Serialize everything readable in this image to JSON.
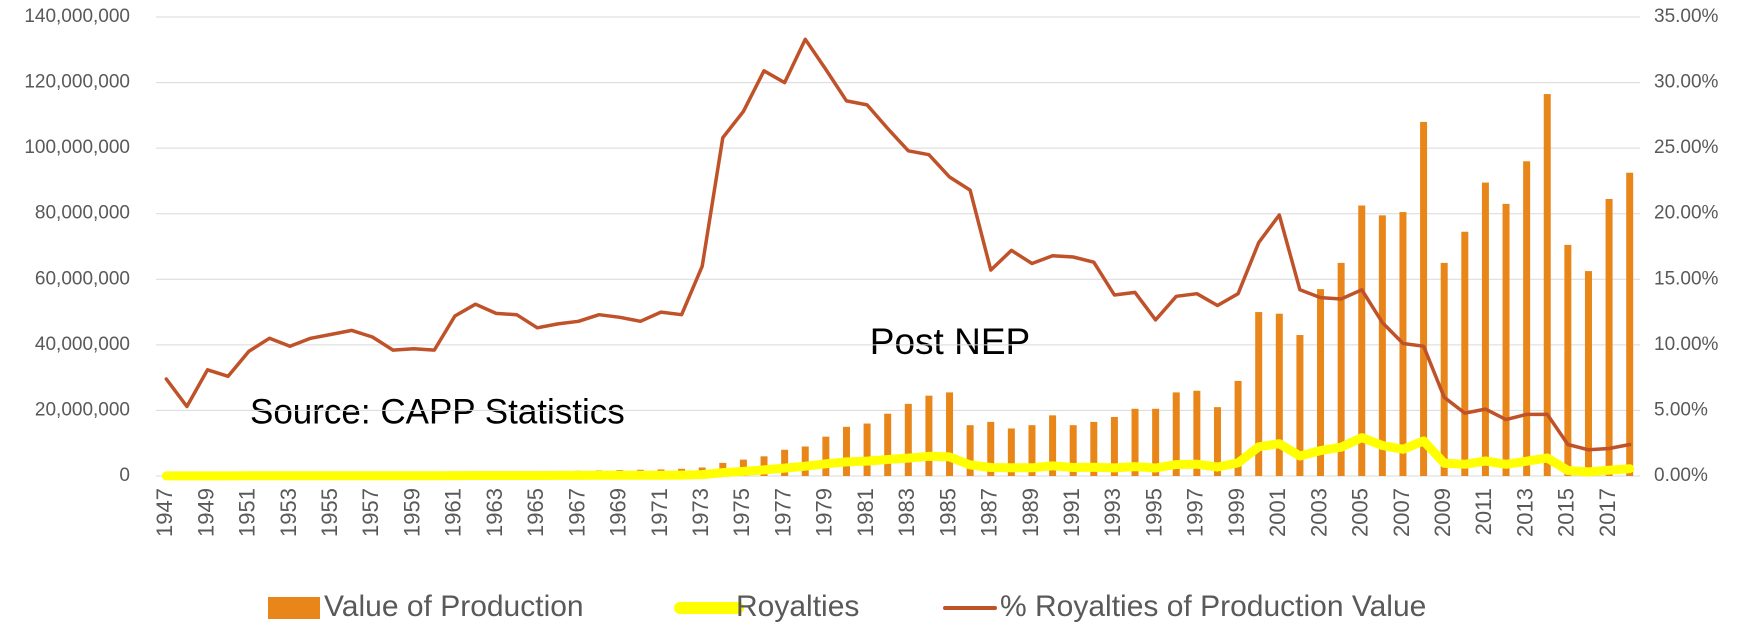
{
  "chart_data": {
    "type": "bar",
    "annotations": [
      "Post NEP",
      "Source: CAPP Statistics"
    ],
    "categories": [
      "1947",
      null,
      "1949",
      null,
      "1951",
      null,
      "1953",
      null,
      "1955",
      null,
      "1957",
      null,
      "1959",
      null,
      "1961",
      null,
      "1963",
      null,
      "1965",
      null,
      "1967",
      null,
      "1969",
      null,
      "1971",
      null,
      "1973",
      null,
      "1975",
      null,
      "1977",
      null,
      "1979",
      null,
      "1981",
      null,
      "1983",
      null,
      "1985",
      null,
      "1987",
      null,
      "1989",
      null,
      "1991",
      null,
      "1993",
      null,
      "1995",
      null,
      "1997",
      null,
      "1999",
      null,
      "2001",
      null,
      "2003",
      null,
      "2005",
      null,
      "2007",
      null,
      "2009",
      null,
      "2011",
      null,
      "2013",
      null,
      "2015",
      null,
      "2017",
      null
    ],
    "series": [
      {
        "name": "Value of Production",
        "type": "bar",
        "color": "#e8861a",
        "values": [
          300000,
          300000,
          400000,
          400000,
          500000,
          500000,
          600000,
          600000,
          700000,
          700000,
          800000,
          800000,
          900000,
          900000,
          1000000,
          1100000,
          1200000,
          1300000,
          1400000,
          1500000,
          1600000,
          1700000,
          1800000,
          1900000,
          2000000,
          2200000,
          2600000,
          4000000,
          5000000,
          6000000,
          8000000,
          9000000,
          12000000,
          15000000,
          16000000,
          19000000,
          22000000,
          24500000,
          25500000,
          15500000,
          16500000,
          14500000,
          15500000,
          18500000,
          15500000,
          16500000,
          18000000,
          20500000,
          20500000,
          25500000,
          26000000,
          21000000,
          29000000,
          50000000,
          49500000,
          43000000,
          57000000,
          65000000,
          82500000,
          79500000,
          80500000,
          108000000,
          65000000,
          74500000,
          89500000,
          83000000,
          96000000,
          116500000,
          70500000,
          62500000,
          84500000,
          92500000
        ]
      },
      {
        "name": "Royalties",
        "type": "line",
        "color": "#ffff00",
        "values": [
          20000,
          16000,
          32000,
          30000,
          48000,
          52000,
          60000,
          63000,
          76000,
          78000,
          85000,
          77000,
          87000,
          86000,
          122000,
          144000,
          149000,
          160000,
          158000,
          174000,
          189000,
          209000,
          218000,
          224000,
          250000,
          271000,
          416000,
          1032000,
          1390000,
          1854000,
          2400000,
          3000000,
          3720000,
          4290000,
          4530000,
          5035000,
          5456000,
          6000000,
          5814000,
          3379000,
          2590000,
          2494000,
          2511000,
          3108000,
          2589000,
          2690000,
          2484000,
          2870000,
          2440000,
          3494000,
          3614000,
          2730000,
          4031000,
          8900000,
          9850000,
          6106000,
          7752000,
          8775000,
          11715000,
          9302000,
          8131000,
          10692000,
          3900000,
          3576000,
          4565000,
          3569000,
          4512000,
          5476000,
          1692000,
          1250000,
          1775000,
          2220000
        ]
      },
      {
        "name": "% Royalties of Production Value",
        "type": "line",
        "axis": "y2",
        "color": "#c0522a",
        "values": [
          7.4,
          5.3,
          8.1,
          7.6,
          9.5,
          10.5,
          9.9,
          10.5,
          10.8,
          11.1,
          10.6,
          9.6,
          9.7,
          9.6,
          12.2,
          13.1,
          12.4,
          12.3,
          11.3,
          11.6,
          11.8,
          12.3,
          12.1,
          11.8,
          12.5,
          12.3,
          16.0,
          25.8,
          27.8,
          30.9,
          30.0,
          33.3,
          31.0,
          28.6,
          28.3,
          26.5,
          24.8,
          24.5,
          22.8,
          21.8,
          15.7,
          17.2,
          16.2,
          16.8,
          16.7,
          16.3,
          13.8,
          14.0,
          11.9,
          13.7,
          13.9,
          13.0,
          13.9,
          17.8,
          19.9,
          14.2,
          13.6,
          13.5,
          14.2,
          11.7,
          10.1,
          9.9,
          6.0,
          4.8,
          5.1,
          4.3,
          4.7,
          4.7,
          2.4,
          2.0,
          2.1,
          2.4
        ]
      }
    ],
    "ylim": [
      0,
      140000000
    ],
    "yticks": [
      {
        "value": 0,
        "label": "0"
      },
      {
        "value": 20000000,
        "label": "20,000,000"
      },
      {
        "value": 40000000,
        "label": "40,000,000"
      },
      {
        "value": 60000000,
        "label": "60,000,000"
      },
      {
        "value": 80000000,
        "label": "80,000,000"
      },
      {
        "value": 100000000,
        "label": "100,000,000"
      },
      {
        "value": 120000000,
        "label": "120,000,000"
      },
      {
        "value": 140000000,
        "label": "140,000,000"
      }
    ],
    "y2lim": [
      0,
      35
    ],
    "y2ticks": [
      {
        "value": 0,
        "label": "0.00%"
      },
      {
        "value": 5,
        "label": "5.00%"
      },
      {
        "value": 10,
        "label": "10.00%"
      },
      {
        "value": 15,
        "label": "15.00%"
      },
      {
        "value": 20,
        "label": "20.00%"
      },
      {
        "value": 25,
        "label": "25.00%"
      },
      {
        "value": 30,
        "label": "30.00%"
      },
      {
        "value": 35,
        "label": "35.00%"
      }
    ],
    "grid": true,
    "legend": "bottom"
  }
}
